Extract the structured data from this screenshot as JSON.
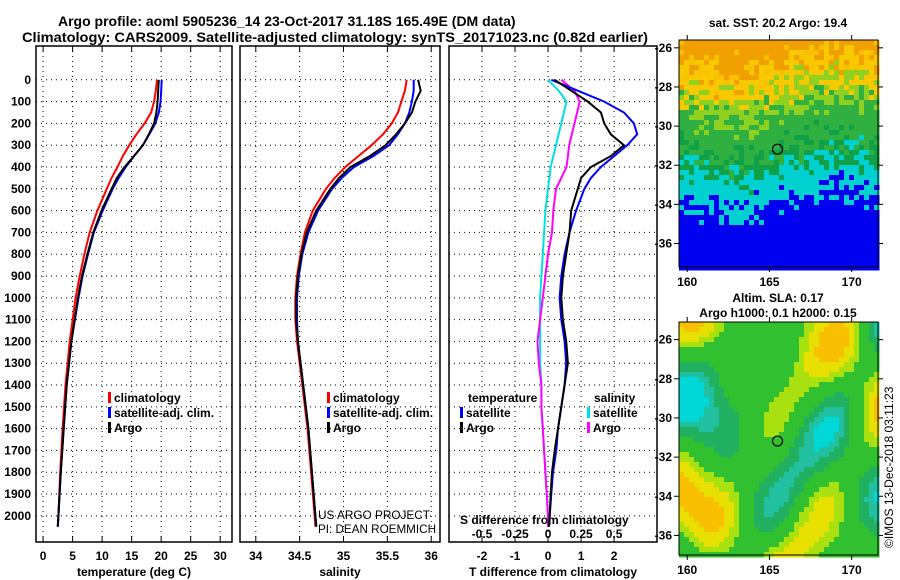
{
  "title_line1": "Argo profile: aoml 5905236_14 23-Oct-2017 31.18S 165.49E (DM data)",
  "title_line2": "Climatology: CARS2009. Satellite-adjusted climatology: synTS_20171023.nc (0.82d earlier)",
  "credit_line1": "US ARGO PROJECT",
  "credit_line2": "PI: DEAN ROEMMICH",
  "timestamp": "©IMOS 13-Dec-2018 03:11:23",
  "colors": {
    "climatology": "#ff0000",
    "satellite": "#0000ff",
    "argo": "#000000",
    "sal_satellite": "#00e0e0",
    "sal_argo": "#ff00ff"
  },
  "chart_data": [
    {
      "type": "line",
      "xlabel": "temperature (deg C)",
      "ylabel": "",
      "xlim": [
        -1.2,
        32
      ],
      "ylim": [
        2120,
        -155
      ],
      "xticks": [
        0,
        5,
        10,
        15,
        20,
        25,
        30
      ],
      "yticks": [
        0,
        100,
        200,
        300,
        400,
        500,
        600,
        700,
        800,
        900,
        1000,
        1100,
        1200,
        1300,
        1400,
        1500,
        1600,
        1700,
        1800,
        1900,
        2000
      ],
      "grid": true,
      "legend": [
        "climatology",
        "satellite-adj. clim.",
        "Argo"
      ],
      "depth": [
        0,
        50,
        100,
        150,
        200,
        250,
        300,
        350,
        400,
        450,
        500,
        600,
        700,
        800,
        900,
        1000,
        1200,
        1400,
        1600,
        1800,
        2000,
        2050
      ],
      "series": [
        {
          "name": "climatology",
          "values": [
            19.3,
            19.1,
            18.8,
            18.3,
            17.2,
            15.8,
            14.6,
            13.5,
            12.6,
            11.6,
            10.8,
            9.2,
            7.9,
            7.0,
            6.2,
            5.5,
            4.5,
            3.8,
            3.3,
            2.9,
            2.6,
            2.5
          ]
        },
        {
          "name": "satellite-adj. clim.",
          "values": [
            20.1,
            20.0,
            19.9,
            19.6,
            19.0,
            18.0,
            16.9,
            15.4,
            14.0,
            12.8,
            11.8,
            10.1,
            8.6,
            7.6,
            6.7,
            6.0,
            4.8,
            4.0,
            3.5,
            3.0,
            2.6,
            2.5
          ]
        },
        {
          "name": "Argo",
          "values": [
            19.6,
            19.5,
            19.4,
            19.2,
            18.8,
            17.9,
            16.9,
            15.4,
            13.8,
            12.5,
            11.6,
            9.9,
            8.5,
            7.5,
            6.6,
            5.9,
            4.8,
            4.0,
            3.5,
            3.0,
            2.6,
            2.5
          ]
        }
      ]
    },
    {
      "type": "line",
      "xlabel": "salinity",
      "xlim": [
        33.82,
        36.1
      ],
      "ylim": [
        2120,
        -155
      ],
      "xticks": [
        34,
        34.5,
        35,
        35.5,
        36
      ],
      "grid": true,
      "legend": [
        "climatology",
        "satellite-adj. clim.",
        "Argo"
      ],
      "depth": [
        0,
        50,
        100,
        150,
        200,
        250,
        300,
        350,
        400,
        450,
        500,
        600,
        700,
        800,
        900,
        1000,
        1100,
        1200,
        1400,
        1600,
        1800,
        2000,
        2050
      ],
      "series": [
        {
          "name": "climatology",
          "values": [
            35.72,
            35.7,
            35.66,
            35.62,
            35.55,
            35.45,
            35.32,
            35.17,
            35.02,
            34.9,
            34.8,
            34.65,
            34.56,
            34.51,
            34.47,
            34.45,
            34.45,
            34.47,
            34.53,
            34.59,
            34.63,
            34.67,
            34.68
          ]
        },
        {
          "name": "satellite-adj. clim.",
          "values": [
            35.8,
            35.8,
            35.78,
            35.75,
            35.7,
            35.62,
            35.52,
            35.34,
            35.12,
            34.98,
            34.87,
            34.71,
            34.6,
            34.53,
            34.49,
            34.47,
            34.47,
            34.48,
            34.54,
            34.6,
            34.64,
            34.68,
            34.69
          ]
        },
        {
          "name": "Argo",
          "values": [
            35.85,
            35.88,
            35.82,
            35.78,
            35.7,
            35.6,
            35.48,
            35.3,
            35.08,
            34.95,
            34.85,
            34.69,
            34.58,
            34.52,
            34.48,
            34.46,
            34.46,
            34.48,
            34.54,
            34.6,
            34.64,
            34.68,
            34.69
          ]
        }
      ]
    },
    {
      "type": "line",
      "xlabel": "T difference from climatology",
      "xlabel2": "S difference from climatology",
      "xlim": [
        -3,
        3.3
      ],
      "ylim": [
        2120,
        -155
      ],
      "xticks": [
        -2,
        -1,
        0,
        1,
        2
      ],
      "xticks2": [
        -0.5,
        -0.25,
        0,
        0.25,
        0.5
      ],
      "xtick2_labels": [
        "-0.5",
        "-0.25",
        "0",
        "0.25",
        "0.5"
      ],
      "grid": true,
      "legend_temperature_title": "temperature",
      "legend_salinity_title": "salinity",
      "legend_temperature": [
        "satellite",
        "Argo"
      ],
      "legend_salinity": [
        "satellite",
        "Argo"
      ],
      "depth": [
        0,
        50,
        100,
        150,
        200,
        250,
        300,
        350,
        400,
        450,
        500,
        600,
        700,
        800,
        900,
        1000,
        1100,
        1200,
        1300,
        1400,
        1500,
        1600,
        1700,
        1800,
        1900,
        2000,
        2050
      ],
      "series": [
        {
          "name": "T satellite",
          "unit": "degC",
          "values": [
            0.1,
            0.9,
            1.7,
            2.3,
            2.6,
            2.7,
            2.4,
            2.0,
            1.6,
            1.3,
            1.1,
            0.85,
            0.65,
            0.5,
            0.4,
            0.35,
            0.4,
            0.5,
            0.55,
            0.5,
            0.4,
            0.3,
            0.25,
            0.15,
            0.1,
            0.05,
            0.03
          ]
        },
        {
          "name": "T Argo",
          "unit": "degC",
          "values": [
            0.2,
            0.7,
            1.2,
            1.6,
            1.7,
            1.9,
            2.3,
            1.9,
            1.3,
            1.0,
            0.9,
            0.7,
            0.65,
            0.55,
            0.45,
            0.4,
            0.45,
            0.55,
            0.6,
            0.5,
            0.4,
            0.3,
            0.2,
            0.12,
            0.08,
            0.05,
            0.03
          ]
        },
        {
          "name": "S satellite",
          "unit": "psu",
          "values": [
            0.0,
            0.08,
            0.14,
            0.12,
            0.1,
            0.08,
            0.06,
            0.04,
            0.02,
            0.01,
            0.0,
            -0.02,
            -0.03,
            -0.04,
            -0.05,
            -0.06,
            -0.06,
            -0.06,
            -0.06,
            -0.05,
            -0.05,
            -0.04,
            -0.03,
            -0.02,
            -0.01,
            0.0,
            0.0
          ]
        },
        {
          "name": "S Argo",
          "unit": "psu",
          "values": [
            0.1,
            0.2,
            0.24,
            0.22,
            0.2,
            0.18,
            0.16,
            0.15,
            0.14,
            0.1,
            0.06,
            0.04,
            0.03,
            0.0,
            -0.02,
            -0.04,
            -0.06,
            -0.08,
            -0.07,
            -0.05,
            -0.05,
            -0.04,
            -0.03,
            -0.02,
            -0.01,
            0.0,
            0.0
          ]
        }
      ]
    },
    {
      "type": "heatmap",
      "title": "sat. SST: 20.2 Argo: 19.4",
      "xlim": [
        159.5,
        171.6
      ],
      "ylim": [
        -25.6,
        -37.2
      ],
      "xticks": [
        160,
        165,
        170
      ],
      "yticks": [
        -26,
        -28,
        -30,
        -32,
        -34,
        -36
      ],
      "marker": {
        "lon": 165.49,
        "lat": -31.18
      }
    },
    {
      "type": "heatmap",
      "title": "Altim. SLA: 0.17",
      "subtitle": "Argo h1000: 0.1 h2000: 0.15",
      "xlim": [
        159.5,
        171.6
      ],
      "ylim": [
        -25.1,
        -37.0
      ],
      "xticks": [
        160,
        165,
        170
      ],
      "yticks": [
        -26,
        -28,
        -30,
        -32,
        -34,
        -36
      ],
      "marker": {
        "lon": 165.49,
        "lat": -31.18
      }
    }
  ]
}
